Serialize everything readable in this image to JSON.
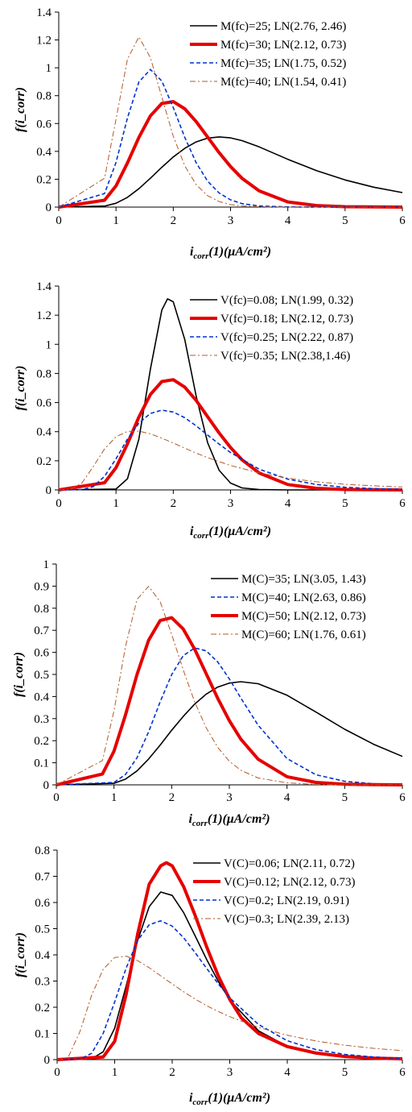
{
  "chart_data": [
    {
      "type": "line",
      "xlabel": "i_corr(1)(μA/cm²)",
      "ylabel": "f(i_corr)",
      "xlim": [
        0,
        6
      ],
      "ylim": [
        0,
        1.4
      ],
      "xticks": [
        "0",
        "1",
        "2",
        "3",
        "4",
        "5",
        "6"
      ],
      "yticks": [
        "0",
        "0.2",
        "0.4",
        "0.6",
        "0.8",
        "1",
        "1.2",
        "1.4"
      ],
      "legend_position": "top-right",
      "series": [
        {
          "name": "M(fc)=25; LN(2.76, 2.46)",
          "mean": 2.76,
          "variance": 2.46,
          "color": "#000000",
          "style": "solid",
          "x": [
            0.8,
            1.0,
            1.2,
            1.4,
            1.6,
            1.8,
            2.0,
            2.2,
            2.4,
            2.6,
            2.8,
            3.0,
            3.2,
            3.5,
            4.0,
            4.5,
            5.0,
            5.5,
            6.0
          ],
          "y": [
            0.007,
            0.028,
            0.07,
            0.132,
            0.207,
            0.286,
            0.36,
            0.422,
            0.468,
            0.495,
            0.504,
            0.497,
            0.477,
            0.432,
            0.343,
            0.262,
            0.195,
            0.143,
            0.104
          ]
        },
        {
          "name": "M(fc)=30; LN(2.12, 0.73)",
          "mean": 2.12,
          "variance": 0.73,
          "color": "#e60000",
          "style": "thick",
          "x": [
            0.8,
            1.0,
            1.2,
            1.4,
            1.6,
            1.8,
            2.0,
            2.2,
            2.4,
            2.6,
            2.8,
            3.0,
            3.2,
            3.5,
            4.0,
            4.5,
            5.0,
            5.5,
            6.0
          ],
          "y": [
            0.049,
            0.153,
            0.317,
            0.5,
            0.655,
            0.744,
            0.757,
            0.706,
            0.614,
            0.503,
            0.391,
            0.291,
            0.207,
            0.116,
            0.037,
            0.011,
            0.003,
            0.001,
            0.0
          ]
        },
        {
          "name": "M(fc)=35; LN(1.75, 0.52)",
          "mean": 1.75,
          "variance": 0.52,
          "color": "#0033cc",
          "style": "dashed",
          "x": [
            0.8,
            1.0,
            1.2,
            1.4,
            1.6,
            1.8,
            2.0,
            2.2,
            2.4,
            2.6,
            2.8,
            3.0,
            3.2,
            3.5,
            4.0,
            4.5,
            5.0,
            5.5,
            6.0
          ],
          "y": [
            0.097,
            0.321,
            0.64,
            0.898,
            0.988,
            0.905,
            0.715,
            0.501,
            0.318,
            0.186,
            0.101,
            0.052,
            0.025,
            0.008,
            0.001,
            0.0,
            0.0,
            0.0,
            0.0
          ]
        },
        {
          "name": "M(fc)=40; LN(1.54, 0.41)",
          "mean": 1.54,
          "variance": 0.41,
          "color": "#b05a28",
          "style": "dashdot",
          "x": [
            0.8,
            1.0,
            1.2,
            1.4,
            1.6,
            1.8,
            2.0,
            2.2,
            2.4,
            2.6,
            2.8,
            3.0,
            3.2,
            3.5,
            4.0,
            4.5,
            5.0,
            5.5,
            6.0
          ],
          "y": [
            0.207,
            0.631,
            1.063,
            1.221,
            1.073,
            0.79,
            0.509,
            0.297,
            0.161,
            0.082,
            0.04,
            0.018,
            0.008,
            0.002,
            0.0,
            0.0,
            0.0,
            0.0,
            0.0
          ]
        }
      ]
    },
    {
      "type": "line",
      "xlabel": "i_corr(1)(μA/cm²)",
      "ylabel": "f(i_corr)",
      "xlim": [
        0,
        6
      ],
      "ylim": [
        0,
        1.4
      ],
      "xticks": [
        "0",
        "1",
        "2",
        "3",
        "4",
        "5",
        "6"
      ],
      "yticks": [
        "0",
        "0.2",
        "0.4",
        "0.6",
        "0.8",
        "1",
        "1.2",
        "1.4"
      ],
      "legend_position": "top-right",
      "series": [
        {
          "name": "V(fc)=0.08; LN(1.99, 0.32)",
          "mean": 1.99,
          "variance": 0.32,
          "color": "#000000",
          "style": "solid",
          "x": [
            1.0,
            1.2,
            1.4,
            1.6,
            1.8,
            1.9,
            2.0,
            2.2,
            2.4,
            2.6,
            2.8,
            3.0,
            3.2,
            3.5,
            4.0,
            5.0,
            6.0
          ],
          "y": [
            0.006,
            0.077,
            0.349,
            0.829,
            1.235,
            1.312,
            1.292,
            1.033,
            0.644,
            0.325,
            0.135,
            0.047,
            0.014,
            0.002,
            0.0,
            0.0,
            0.0
          ]
        },
        {
          "name": "V(fc)=0.18; LN(2.12, 0.73)",
          "mean": 2.12,
          "variance": 0.73,
          "color": "#e60000",
          "style": "thick",
          "x": [
            0.8,
            1.0,
            1.2,
            1.4,
            1.6,
            1.8,
            2.0,
            2.2,
            2.4,
            2.6,
            2.8,
            3.0,
            3.2,
            3.5,
            4.0,
            4.5,
            5.0,
            5.5,
            6.0
          ],
          "y": [
            0.049,
            0.153,
            0.317,
            0.5,
            0.655,
            0.744,
            0.757,
            0.706,
            0.614,
            0.503,
            0.391,
            0.291,
            0.207,
            0.116,
            0.037,
            0.011,
            0.003,
            0.001,
            0.0
          ]
        },
        {
          "name": "V(fc)=0.25; LN(2.22, 0.87)",
          "mean": 2.22,
          "variance": 0.87,
          "color": "#0033cc",
          "style": "dashed",
          "x": [
            0.4,
            0.6,
            0.8,
            1.0,
            1.2,
            1.4,
            1.6,
            1.8,
            2.0,
            2.2,
            2.4,
            2.6,
            2.8,
            3.0,
            3.5,
            4.0,
            4.5,
            5.0,
            5.5,
            6.0
          ],
          "y": [
            0.002,
            0.022,
            0.093,
            0.214,
            0.349,
            0.459,
            0.525,
            0.548,
            0.535,
            0.496,
            0.44,
            0.377,
            0.315,
            0.257,
            0.142,
            0.074,
            0.037,
            0.018,
            0.009,
            0.004
          ]
        },
        {
          "name": "V(fc)=0.35; LN(2.38,1.46)",
          "mean": 2.38,
          "variance": 1.46,
          "color": "#b05a28",
          "style": "dashdot",
          "x": [
            0.2,
            0.4,
            0.6,
            0.8,
            1.0,
            1.2,
            1.4,
            1.6,
            1.8,
            2.0,
            2.2,
            2.4,
            2.6,
            2.8,
            3.0,
            3.5,
            4.0,
            4.5,
            5.0,
            5.5,
            6.0
          ],
          "y": [
            0.003,
            0.046,
            0.158,
            0.281,
            0.365,
            0.402,
            0.404,
            0.385,
            0.356,
            0.322,
            0.287,
            0.253,
            0.222,
            0.194,
            0.168,
            0.117,
            0.081,
            0.056,
            0.039,
            0.028,
            0.02
          ]
        }
      ]
    },
    {
      "type": "line",
      "xlabel": "i_corr(1)(μA/cm²)",
      "ylabel": "f(i_corr)",
      "xlim": [
        0,
        6
      ],
      "ylim": [
        0,
        1
      ],
      "xticks": [
        "0",
        "1",
        "2",
        "3",
        "4",
        "5",
        "6"
      ],
      "yticks": [
        "0",
        "0.1",
        "0.2",
        "0.3",
        "0.4",
        "0.5",
        "0.6",
        "0.7",
        "0.8",
        "0.9",
        "1"
      ],
      "legend_position": "top-right",
      "series": [
        {
          "name": "M(C)=35; LN(3.05, 1.43)",
          "mean": 3.05,
          "variance": 1.43,
          "color": "#000000",
          "style": "solid",
          "x": [
            1.0,
            1.2,
            1.4,
            1.6,
            1.8,
            2.0,
            2.2,
            2.4,
            2.6,
            2.8,
            3.0,
            3.2,
            3.5,
            4.0,
            4.5,
            5.0,
            5.5,
            6.0
          ],
          "y": [
            0.007,
            0.026,
            0.063,
            0.117,
            0.18,
            0.247,
            0.31,
            0.366,
            0.411,
            0.443,
            0.461,
            0.467,
            0.458,
            0.406,
            0.33,
            0.252,
            0.184,
            0.129
          ]
        },
        {
          "name": "M(C)=40; LN(2.63, 0.86)",
          "mean": 2.63,
          "variance": 0.86,
          "color": "#0033cc",
          "style": "dashed",
          "x": [
            1.0,
            1.2,
            1.4,
            1.6,
            1.8,
            2.0,
            2.2,
            2.4,
            2.6,
            2.8,
            3.0,
            3.2,
            3.5,
            4.0,
            4.5,
            5.0,
            5.5,
            6.0
          ],
          "y": [
            0.011,
            0.047,
            0.123,
            0.24,
            0.376,
            0.499,
            0.585,
            0.62,
            0.607,
            0.556,
            0.48,
            0.393,
            0.27,
            0.119,
            0.046,
            0.016,
            0.005,
            0.001
          ]
        },
        {
          "name": "M(C)=50; LN(2.12, 0.73)",
          "mean": 2.12,
          "variance": 0.73,
          "color": "#e60000",
          "style": "thick",
          "x": [
            0.8,
            1.0,
            1.2,
            1.4,
            1.6,
            1.8,
            2.0,
            2.2,
            2.4,
            2.6,
            2.8,
            3.0,
            3.2,
            3.5,
            4.0,
            4.5,
            5.0,
            5.5,
            6.0
          ],
          "y": [
            0.049,
            0.153,
            0.317,
            0.5,
            0.655,
            0.744,
            0.757,
            0.706,
            0.614,
            0.503,
            0.391,
            0.291,
            0.207,
            0.116,
            0.037,
            0.011,
            0.003,
            0.001,
            0.0
          ]
        },
        {
          "name": "M(C)=60; LN(1.76, 0.61)",
          "mean": 1.76,
          "variance": 0.61,
          "color": "#b05a28",
          "style": "dashdot",
          "x": [
            0.8,
            1.0,
            1.2,
            1.4,
            1.6,
            1.8,
            2.0,
            2.2,
            2.4,
            2.6,
            2.8,
            3.0,
            3.2,
            3.5,
            4.0,
            4.5,
            5.0,
            5.5,
            6.0
          ],
          "y": [
            0.11,
            0.336,
            0.627,
            0.84,
            0.899,
            0.83,
            0.682,
            0.521,
            0.375,
            0.258,
            0.169,
            0.107,
            0.066,
            0.031,
            0.009,
            0.002,
            0.0,
            0.0,
            0.0
          ]
        }
      ]
    },
    {
      "type": "line",
      "xlabel": "i_corr(1)(μA/cm²)",
      "ylabel": "f(i_corr)",
      "xlim": [
        0,
        6
      ],
      "ylim": [
        0,
        0.8
      ],
      "xticks": [
        "0",
        "1",
        "2",
        "3",
        "4",
        "5",
        "6"
      ],
      "yticks": [
        "0",
        "0.1",
        "0.2",
        "0.3",
        "0.4",
        "0.5",
        "0.6",
        "0.7",
        "0.8"
      ],
      "legend_position": "top-right",
      "series": [
        {
          "name": "V(C)=0.06; LN(2.11, 0.72)",
          "mean": 2.11,
          "variance": 0.72,
          "color": "#000000",
          "style": "solid",
          "x": [
            0.6,
            0.8,
            1.0,
            1.2,
            1.4,
            1.6,
            1.8,
            2.0,
            2.2,
            2.4,
            2.6,
            2.8,
            3.0,
            3.5,
            4.0,
            4.5,
            5.0,
            5.5,
            6.0
          ],
          "y": [
            0.003,
            0.03,
            0.12,
            0.282,
            0.455,
            0.584,
            0.64,
            0.627,
            0.561,
            0.472,
            0.382,
            0.299,
            0.228,
            0.11,
            0.051,
            0.023,
            0.011,
            0.005,
            0.002
          ]
        },
        {
          "name": "V(C)=0.12; LN(2.12, 0.73)",
          "mean": 2.12,
          "variance": 0.73,
          "color": "#e60000",
          "style": "thick",
          "x": [
            0.8,
            1.0,
            1.2,
            1.4,
            1.6,
            1.8,
            1.9,
            2.0,
            2.2,
            2.4,
            2.6,
            2.8,
            3.0,
            3.2,
            3.5,
            4.0,
            4.5,
            5.0,
            5.5,
            6.0
          ],
          "y": [
            0.01,
            0.07,
            0.25,
            0.48,
            0.67,
            0.74,
            0.752,
            0.74,
            0.66,
            0.55,
            0.43,
            0.32,
            0.23,
            0.16,
            0.1,
            0.05,
            0.025,
            0.012,
            0.006,
            0.003
          ]
        },
        {
          "name": "V(C)=0.2; LN(2.19, 0.91)",
          "mean": 2.19,
          "variance": 0.91,
          "color": "#0033cc",
          "style": "dashed",
          "x": [
            0.4,
            0.6,
            0.8,
            1.0,
            1.2,
            1.4,
            1.6,
            1.8,
            2.0,
            2.2,
            2.4,
            2.6,
            2.8,
            3.0,
            3.5,
            4.0,
            4.5,
            5.0,
            5.5,
            6.0
          ],
          "y": [
            0.002,
            0.024,
            0.1,
            0.22,
            0.35,
            0.455,
            0.515,
            0.53,
            0.51,
            0.465,
            0.408,
            0.348,
            0.29,
            0.236,
            0.134,
            0.072,
            0.038,
            0.02,
            0.01,
            0.005
          ]
        },
        {
          "name": "V(C)=0.3; LN(2.39, 2.13)",
          "mean": 2.39,
          "variance": 2.13,
          "color": "#b05a28",
          "style": "dashdot",
          "x": [
            0.1,
            0.2,
            0.4,
            0.6,
            0.8,
            1.0,
            1.2,
            1.4,
            1.6,
            1.8,
            2.0,
            2.2,
            2.4,
            2.6,
            2.8,
            3.0,
            3.5,
            4.0,
            4.5,
            5.0,
            5.5,
            6.0
          ],
          "y": [
            0.001,
            0.013,
            0.109,
            0.246,
            0.345,
            0.39,
            0.395,
            0.378,
            0.351,
            0.32,
            0.289,
            0.259,
            0.231,
            0.206,
            0.184,
            0.164,
            0.123,
            0.093,
            0.071,
            0.055,
            0.043,
            0.034
          ]
        }
      ]
    }
  ]
}
